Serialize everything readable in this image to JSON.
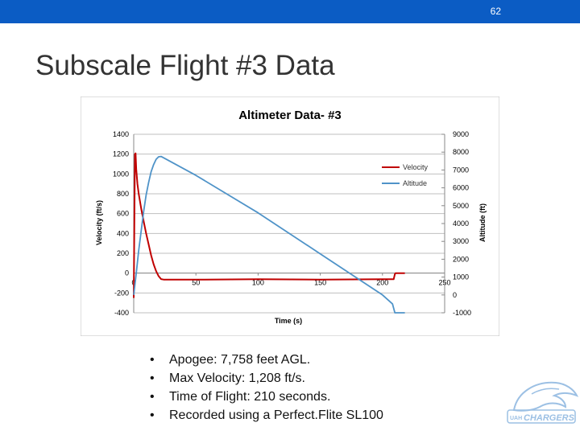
{
  "slide": {
    "page_number": "62",
    "title": "Subscale Flight #3 Data",
    "bullets": [
      "Apogee: 7,758 feet AGL.",
      "Max Velocity: 1,208 ft/s.",
      "Time of Flight: 210 seconds.",
      "Recorded using a Perfect.Flite SL100"
    ],
    "logo": {
      "text": "CHARGERS",
      "subtext": "UAH"
    }
  },
  "colors": {
    "topbar": "#0b5cc4",
    "velocity": "#c00000",
    "altitude": "#4f93c8",
    "grid": "#bfbfbf"
  },
  "chart_data": {
    "type": "line",
    "title": "Altimeter Data- #3",
    "xlabel": "Time (s)",
    "ylabel": "Velocity (ft/s)",
    "y2label": "Altitude (ft)",
    "xlim": [
      0,
      250
    ],
    "ylim": [
      -400,
      1400
    ],
    "y2lim": [
      -1000,
      9000
    ],
    "x_ticks": [
      "0",
      "50",
      "100",
      "150",
      "200",
      "250"
    ],
    "y_ticks": [
      "1400",
      "1200",
      "1000",
      "800",
      "600",
      "400",
      "200",
      "0",
      "-200",
      "-400"
    ],
    "y2_ticks": [
      "9000",
      "8000",
      "7000",
      "6000",
      "5000",
      "4000",
      "3000",
      "2000",
      "1000",
      "0",
      "-1000"
    ],
    "grid": true,
    "legend": "right",
    "series": [
      {
        "name": "Velocity",
        "axis": "left",
        "color": "#c00000",
        "x": [
          0,
          1,
          1.5,
          2,
          3,
          4,
          6,
          8,
          10,
          12,
          14,
          16,
          18,
          20,
          22,
          24,
          50,
          100,
          150,
          200,
          209,
          210,
          210.5,
          218
        ],
        "y": [
          -250,
          1200,
          1208,
          1050,
          900,
          800,
          650,
          520,
          400,
          290,
          180,
          90,
          20,
          -30,
          -60,
          -65,
          -66,
          -62,
          -65,
          -62,
          -62,
          -10,
          0,
          0
        ]
      },
      {
        "name": "Altitude",
        "axis": "right",
        "color": "#4f93c8",
        "x": [
          0,
          2,
          4,
          6,
          8,
          10,
          12,
          14,
          16,
          18,
          20,
          22,
          50,
          100,
          150,
          200,
          208,
          210,
          218
        ],
        "y": [
          0,
          1200,
          2500,
          3600,
          4700,
          5600,
          6300,
          6900,
          7300,
          7600,
          7740,
          7758,
          6700,
          4600,
          2300,
          0,
          -500,
          -1000,
          -1000
        ]
      }
    ]
  }
}
